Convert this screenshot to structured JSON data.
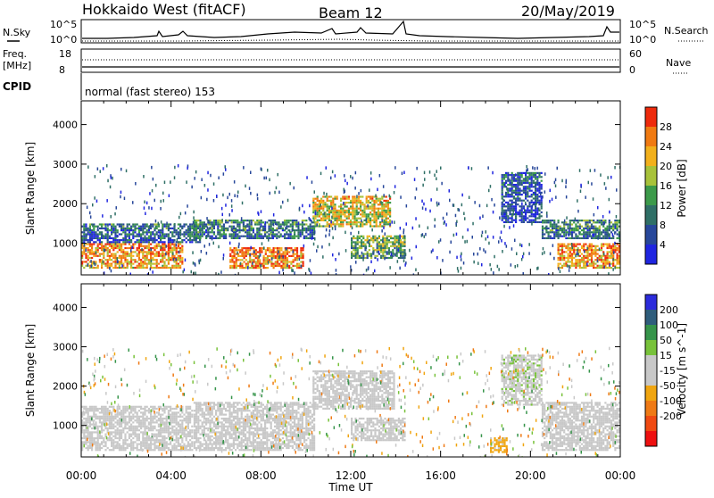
{
  "header": {
    "station": "Hokkaido West (fitACF)",
    "beam": "Beam 12",
    "date": "20/May/2019"
  },
  "top_panels": {
    "nsky_label": "N.Sky",
    "nsky_ticks": [
      "10^5",
      "10^0"
    ],
    "nsearch_label": "N.Search",
    "nsearch_ticks": [
      "10^5",
      "10^0"
    ],
    "freq_label_1": "Freq.",
    "freq_label_2": "[MHz]",
    "freq_ticks": [
      "18",
      "8"
    ],
    "nave_label": "Nave",
    "nave_ticks": [
      "60",
      "0"
    ],
    "cpid_label": "CPID",
    "cpid_text": "normal (fast stereo) 153"
  },
  "colors": {
    "power_scale": [
      "#1f25e0",
      "#27479a",
      "#2f6f66",
      "#3c9a4a",
      "#a8c23a",
      "#f2b01c",
      "#f07a12",
      "#ee2a0c"
    ],
    "velocity_scale": [
      "#2b2bdb",
      "#2f5d7c",
      "#36944a",
      "#78c23a",
      "#c8c8c8",
      "#c8c8c8",
      "#f0a510",
      "#ef7a15",
      "#f04a12",
      "#ee1010"
    ]
  },
  "chart_data": [
    {
      "type": "heatmap",
      "title": "Power",
      "ylabel": "Slant Range [km]",
      "xlabel": "",
      "x_ticks": [
        "00:00",
        "04:00",
        "08:00",
        "12:00",
        "16:00",
        "20:00",
        "00:00"
      ],
      "y_ticks": [
        "1000",
        "2000",
        "3000",
        "4000"
      ],
      "ylim": [
        200,
        4600
      ],
      "xlim_hours": [
        0,
        24
      ],
      "colorbar_label": "Power [dB]",
      "colorbar_ticks": [
        "4",
        "8",
        "12",
        "16",
        "20",
        "24",
        "28"
      ],
      "colorbar_range": [
        0,
        32
      ],
      "features": [
        {
          "t0": 0.0,
          "t1": 4.6,
          "r0": 350,
          "r1": 1000,
          "level": 26
        },
        {
          "t0": 0.0,
          "t1": 5.4,
          "r0": 1000,
          "r1": 1500,
          "level": 10
        },
        {
          "t0": 5.0,
          "t1": 10.5,
          "r0": 1100,
          "r1": 1600,
          "level": 12
        },
        {
          "t0": 6.6,
          "t1": 10.0,
          "r0": 350,
          "r1": 900,
          "level": 27
        },
        {
          "t0": 10.3,
          "t1": 13.8,
          "r0": 1400,
          "r1": 2200,
          "level": 22
        },
        {
          "t0": 12.0,
          "t1": 14.5,
          "r0": 600,
          "r1": 1200,
          "level": 16
        },
        {
          "t0": 18.7,
          "t1": 20.6,
          "r0": 1500,
          "r1": 2800,
          "level": 8
        },
        {
          "t0": 20.5,
          "t1": 24.0,
          "r0": 1100,
          "r1": 1600,
          "level": 12
        },
        {
          "t0": 21.2,
          "t1": 24.0,
          "r0": 350,
          "r1": 1000,
          "level": 26
        }
      ]
    },
    {
      "type": "heatmap",
      "title": "Velocity",
      "ylabel": "Slant Range [km]",
      "xlabel": "Time UT",
      "x_ticks": [
        "00:00",
        "04:00",
        "08:00",
        "12:00",
        "16:00",
        "20:00",
        "00:00"
      ],
      "y_ticks": [
        "1000",
        "2000",
        "3000",
        "4000"
      ],
      "ylim": [
        200,
        4600
      ],
      "xlim_hours": [
        0,
        24
      ],
      "colorbar_label": "Velocity [m s^-1]",
      "colorbar_ticks": [
        "200",
        "100",
        "50",
        "15",
        "-15",
        "-50",
        "-100",
        "-200"
      ],
      "colorbar_range": [
        -250,
        250
      ],
      "features": [
        {
          "t0": 0.0,
          "t1": 5.0,
          "r0": 350,
          "r1": 1500,
          "level": 0
        },
        {
          "t0": 5.0,
          "t1": 10.5,
          "r0": 350,
          "r1": 1600,
          "level": 0
        },
        {
          "t0": 10.3,
          "t1": 14.0,
          "r0": 1400,
          "r1": 2400,
          "level": 0
        },
        {
          "t0": 12.0,
          "t1": 14.5,
          "r0": 600,
          "r1": 1200,
          "level": 0
        },
        {
          "t0": 18.2,
          "t1": 19.0,
          "r0": 300,
          "r1": 700,
          "level": -60
        },
        {
          "t0": 18.7,
          "t1": 20.6,
          "r0": 1500,
          "r1": 2800,
          "level": 30
        },
        {
          "t0": 20.5,
          "t1": 24.0,
          "r0": 350,
          "r1": 1600,
          "level": 0
        }
      ]
    }
  ]
}
